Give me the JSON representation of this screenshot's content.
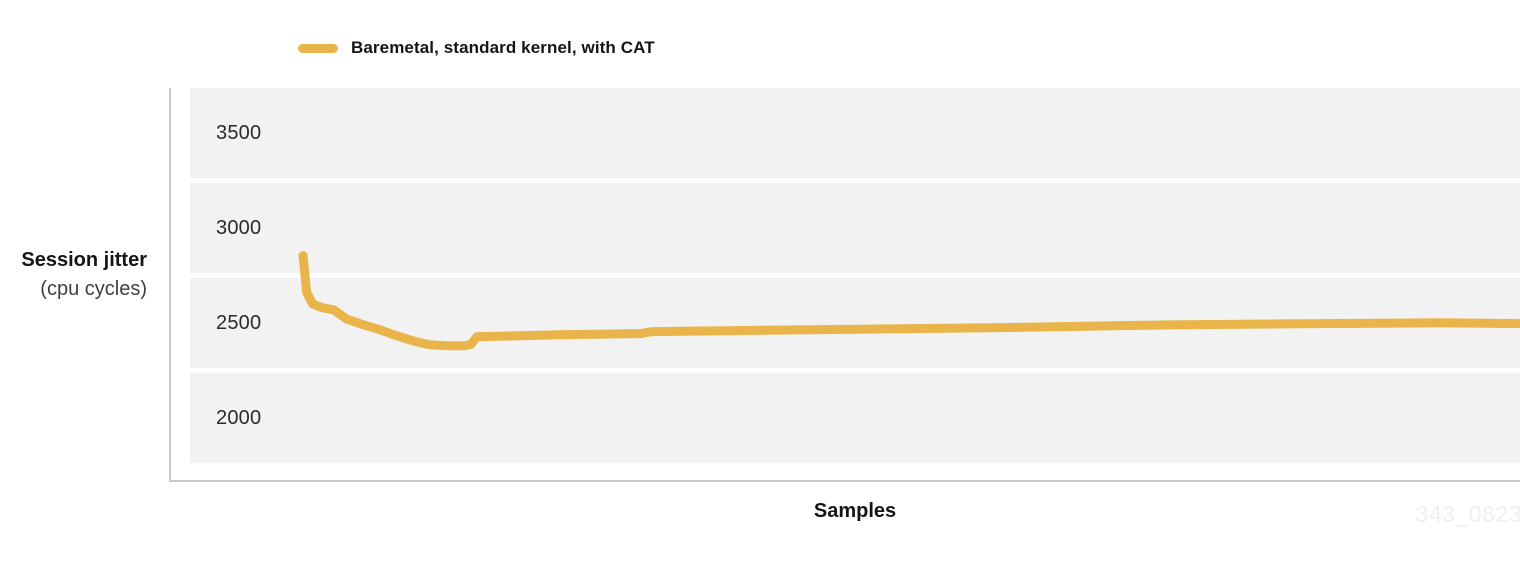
{
  "legend": {
    "label": "Baremetal, standard kernel, with CAT"
  },
  "y_axis": {
    "title": "Session jitter",
    "subtitle": "(cpu cycles)",
    "ticks": [
      "3500",
      "3000",
      "2500",
      "2000"
    ]
  },
  "x_axis": {
    "title": "Samples"
  },
  "watermark": "343_0823",
  "colors": {
    "series": "#E9B54A",
    "band": "#F2F2F2",
    "axis": "#C9C9C9",
    "text_dark": "#151515",
    "text_gray": "#3F3F3F",
    "watermark": "#F0EFF0"
  },
  "chart_data": {
    "type": "line",
    "title": "",
    "xlabel": "Samples",
    "ylabel": "Session jitter (cpu cycles)",
    "ylim": [
      1765,
      3735
    ],
    "yticks": [
      3500,
      3000,
      2500,
      2000
    ],
    "x_unit": "percent_of_sample_range",
    "grid": "horizontal-bands",
    "legend_position": "top",
    "series": [
      {
        "name": "Baremetal, standard kernel, with CAT",
        "color": "#E9B54A",
        "points": [
          [
            0,
            2855
          ],
          [
            0.3,
            2660
          ],
          [
            0.8,
            2600
          ],
          [
            1.6,
            2580
          ],
          [
            2.5,
            2570
          ],
          [
            3.6,
            2520
          ],
          [
            4.9,
            2492
          ],
          [
            6.3,
            2465
          ],
          [
            7.7,
            2433
          ],
          [
            9.0,
            2407
          ],
          [
            10.4,
            2386
          ],
          [
            11.8,
            2380
          ],
          [
            13.3,
            2380
          ],
          [
            13.8,
            2388
          ],
          [
            14.3,
            2428
          ],
          [
            17.8,
            2433
          ],
          [
            21.1,
            2438
          ],
          [
            27.7,
            2444
          ],
          [
            28.7,
            2455
          ],
          [
            41.7,
            2465
          ],
          [
            57.3,
            2476
          ],
          [
            71.2,
            2490
          ],
          [
            81.9,
            2496
          ],
          [
            93.4,
            2501
          ],
          [
            100,
            2497
          ]
        ]
      }
    ]
  }
}
